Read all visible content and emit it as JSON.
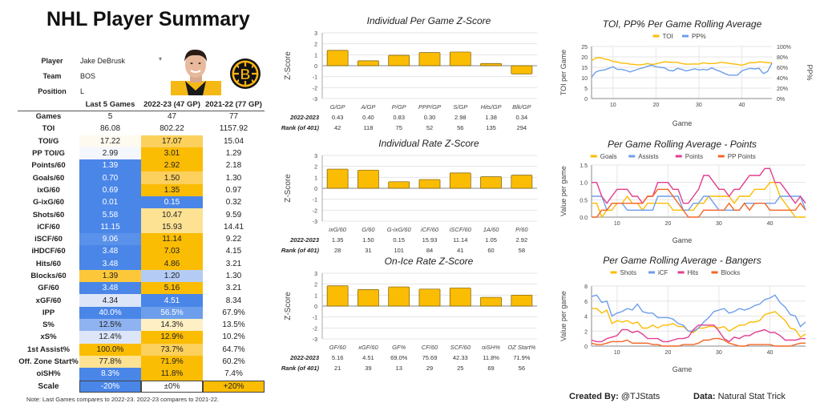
{
  "page": {
    "title": "NHL Player Summary",
    "created_by_label": "Created By:",
    "created_by_value": "@TJStats",
    "data_label": "Data:",
    "data_value": "Natural Stat Trick"
  },
  "player": {
    "player_label": "Player",
    "player_value": "Jake DeBrusk",
    "team_label": "Team",
    "team_value": "BOS",
    "position_label": "Position",
    "position_value": "L",
    "dropdown_icon": "caret-down-icon",
    "headshot": "player-headshot",
    "team_logo": "bruins-logo"
  },
  "colors": {
    "blue_strong": "#4a86e8",
    "blue_mid": "#6d9eeb",
    "blue_light": "#a4c2f4",
    "blue_pale": "#dce6f8",
    "white_ish": "#fdfaf2",
    "gold_strong": "#fbbc04",
    "gold_mid": "#fcc83a",
    "gold_light": "#fde293",
    "gold_pale": "#fef0c4",
    "bar": "#fbbc04",
    "toi": "#fbbc04",
    "pp": "#6d9eeb",
    "points": "#e23d8f",
    "ppp": "#f46524"
  },
  "table": {
    "headers": [
      "",
      "Last 5 Games",
      "2022-23 (47 GP)",
      "2021-22 (77 GP)"
    ],
    "rows": [
      {
        "label": "Games",
        "c1": "5",
        "c2": "47",
        "c3": "77",
        "bg1": "",
        "bg2": ""
      },
      {
        "label": "TOI",
        "c1": "86.08",
        "c2": "802.22",
        "c3": "1157.92",
        "bg1": "",
        "bg2": ""
      },
      {
        "label": "TOI/G",
        "c1": "17.22",
        "c2": "17.07",
        "c3": "15.04",
        "bg1": "#fffaf0",
        "bg2": "#fcd05c"
      },
      {
        "label": "PP TOI/G",
        "c1": "2.99",
        "c2": "3.01",
        "c3": "1.29",
        "bg1": "#f4f7fd",
        "bg2": "#fbbc04"
      },
      {
        "label": "Points/60",
        "c1": "1.39",
        "c2": "2.92",
        "c3": "2.18",
        "bg1": "#4a86e8",
        "bg2": "#fbbc04"
      },
      {
        "label": "Goals/60",
        "c1": "0.70",
        "c2": "1.50",
        "c3": "1.30",
        "bg1": "#4a86e8",
        "bg2": "#fcd05c"
      },
      {
        "label": "ixG/60",
        "c1": "0.69",
        "c2": "1.35",
        "c3": "0.97",
        "bg1": "#4a86e8",
        "bg2": "#fbbc04"
      },
      {
        "label": "G-ixG/60",
        "c1": "0.01",
        "c2": "0.15",
        "c3": "0.32",
        "bg1": "#4a86e8",
        "bg2": "#4a86e8"
      },
      {
        "label": "Shots/60",
        "c1": "5.58",
        "c2": "10.47",
        "c3": "9.59",
        "bg1": "#4a86e8",
        "bg2": "#fde293"
      },
      {
        "label": "iCF/60",
        "c1": "11.15",
        "c2": "15.93",
        "c3": "14.41",
        "bg1": "#4a86e8",
        "bg2": "#fde293"
      },
      {
        "label": "iSCF/60",
        "c1": "9.06",
        "c2": "11.14",
        "c3": "9.22",
        "bg1": "#5a91ea",
        "bg2": "#fbbc04"
      },
      {
        "label": "iHDCF/60",
        "c1": "3.48",
        "c2": "7.03",
        "c3": "4.15",
        "bg1": "#4a86e8",
        "bg2": "#fbbc04"
      },
      {
        "label": "Hits/60",
        "c1": "3.48",
        "c2": "4.86",
        "c3": "3.21",
        "bg1": "#4a86e8",
        "bg2": "#fbbc04"
      },
      {
        "label": "Blocks/60",
        "c1": "1.39",
        "c2": "1.20",
        "c3": "1.30",
        "bg1": "#fcc83a",
        "bg2": "#b4ccf5"
      },
      {
        "label": "GF/60",
        "c1": "3.48",
        "c2": "5.16",
        "c3": "3.21",
        "bg1": "#4a86e8",
        "bg2": "#fbbc04"
      },
      {
        "label": "xGF/60",
        "c1": "4.34",
        "c2": "4.51",
        "c3": "8.34",
        "bg1": "#dce6f8",
        "bg2": "#4a86e8"
      },
      {
        "label": "IPP",
        "c1": "40.0%",
        "c2": "56.5%",
        "c3": "67.9%",
        "bg1": "#4a86e8",
        "bg2": "#6d9eeb"
      },
      {
        "label": "S%",
        "c1": "12.5%",
        "c2": "14.3%",
        "c3": "13.5%",
        "bg1": "#8fb3f0",
        "bg2": "#fef0c4"
      },
      {
        "label": "xS%",
        "c1": "12.4%",
        "c2": "12.9%",
        "c3": "10.2%",
        "bg1": "#dce6f8",
        "bg2": "#fbbc04"
      },
      {
        "label": "1st Assist%",
        "c1": "100.0%",
        "c2": "73.7%",
        "c3": "64.7%",
        "bg1": "#fbbc04",
        "bg2": "#fcd05c"
      },
      {
        "label": "Off. Zone Start%",
        "c1": "77.8%",
        "c2": "71.9%",
        "c3": "60.2%",
        "bg1": "#fde293",
        "bg2": "#fbbc04"
      },
      {
        "label": "oiSH%",
        "c1": "8.3%",
        "c2": "11.8%",
        "c3": "7.4%",
        "bg1": "#4a86e8",
        "bg2": "#fbbc04"
      }
    ]
  },
  "scale": {
    "label": "Scale",
    "low": "-20%",
    "mid": "±0%",
    "high": "+20%"
  },
  "note": "Note: Last Games compares to 2022-23. 2022-23 compares to 2021-22.",
  "chart_data": [
    {
      "id": "zpg",
      "type": "bar",
      "title": "Individual Per Game Z-Score",
      "ylabel": "Z-Score",
      "ylim": [
        -3,
        3
      ],
      "yticks": [
        3,
        2,
        1,
        0,
        -1,
        -2,
        -3
      ],
      "grid": true,
      "categories": [
        "G/GP",
        "A/GP",
        "P/GP",
        "PPP/GP",
        "S/GP",
        "Hits/GP",
        "Blk/GP"
      ],
      "values": [
        1.4,
        0.45,
        0.95,
        1.2,
        1.25,
        0.2,
        -0.75
      ],
      "row1_label": "2022-2023",
      "row1": [
        "0.43",
        "0.40",
        "0.83",
        "0.30",
        "2.98",
        "1.38",
        "0.34"
      ],
      "row2_label": "Rank (of 401)",
      "row2": [
        "42",
        "118",
        "75",
        "52",
        "56",
        "135",
        "294"
      ]
    },
    {
      "id": "zrate",
      "type": "bar",
      "title": "Individual Rate Z-Score",
      "ylabel": "Z-Score",
      "ylim": [
        -3,
        3
      ],
      "yticks": [
        3,
        2,
        1,
        0,
        -1,
        -2,
        -3
      ],
      "grid": true,
      "categories": [
        "ixG/60",
        "G/60",
        "G-ixG/60",
        "iCF/60",
        "iSCF/60",
        "1A/60",
        "P/60"
      ],
      "values": [
        1.75,
        1.65,
        0.6,
        0.8,
        1.4,
        1.05,
        1.2
      ],
      "row1_label": "2022-2023",
      "row1": [
        "1.35",
        "1.50",
        "0.15",
        "15.93",
        "11.14",
        "1.05",
        "2.92"
      ],
      "row2_label": "Rank (of 401)",
      "row2": [
        "28",
        "31",
        "101",
        "84",
        "41",
        "60",
        "58"
      ]
    },
    {
      "id": "zice",
      "type": "bar",
      "title": "On-Ice Rate Z-Score",
      "ylabel": "Z-Score",
      "ylim": [
        -3,
        3
      ],
      "yticks": [
        3,
        2,
        1,
        0,
        -1,
        -2,
        -3
      ],
      "grid": true,
      "categories": [
        "GF/60",
        "xGF/60",
        "GF%",
        "CF/60",
        "SCF/60",
        "oiSH%",
        "OZ Start%"
      ],
      "values": [
        1.85,
        1.5,
        1.75,
        1.55,
        1.65,
        0.8,
        1.0
      ],
      "row1_label": "2022-2023",
      "row1": [
        "5.16",
        "4.51",
        "69.0%",
        "75.69",
        "42.33",
        "11.8%",
        "71.9%"
      ],
      "row2_label": "Rank (of 401)",
      "row2": [
        "21",
        "39",
        "13",
        "29",
        "25",
        "69",
        "56"
      ]
    },
    {
      "id": "toi",
      "type": "line",
      "title": "TOI, PP% Per Game Rolling Average",
      "xlabel": "Game",
      "ylabel": "TOI per Game",
      "ylabel_right": "PP%",
      "xlim": [
        5,
        47
      ],
      "xticks": [
        10,
        20,
        30,
        40
      ],
      "ylim": [
        0,
        25
      ],
      "yticks": [
        0,
        5,
        10,
        15,
        20,
        25
      ],
      "ylim_right": [
        0,
        100
      ],
      "yticks_right": [
        "0%",
        "20%",
        "40%",
        "60%",
        "80%",
        "100%"
      ],
      "legend": "top",
      "grid": true,
      "x": [
        5,
        6,
        7,
        8,
        9,
        10,
        11,
        12,
        13,
        14,
        15,
        16,
        17,
        18,
        19,
        20,
        21,
        22,
        23,
        24,
        25,
        26,
        27,
        28,
        29,
        30,
        31,
        32,
        33,
        34,
        35,
        36,
        37,
        38,
        39,
        40,
        41,
        42,
        43,
        44,
        45,
        46,
        47
      ],
      "series": [
        {
          "name": "TOI",
          "axis": "left",
          "color": "#fbbc04",
          "values": [
            18.2,
            19.5,
            19.6,
            19.0,
            18.6,
            17.8,
            17.5,
            17.0,
            16.9,
            16.5,
            16.4,
            16.1,
            16.3,
            16.8,
            16.4,
            16.6,
            17.2,
            17.6,
            17.5,
            17.4,
            17.4,
            16.8,
            16.5,
            16.5,
            16.6,
            16.5,
            17.2,
            16.8,
            16.8,
            16.9,
            17.4,
            17.2,
            16.9,
            16.6,
            16.4,
            16.0,
            16.6,
            17.3,
            17.2,
            17.6,
            17.5,
            17.2,
            17.2
          ]
        },
        {
          "name": "PP%",
          "axis": "right",
          "color": "#6d9eeb",
          "values": [
            41,
            51,
            54,
            55,
            58,
            61,
            56,
            56,
            54,
            51,
            54,
            57,
            59,
            62,
            64,
            61,
            60,
            59,
            54,
            53,
            58,
            56,
            53,
            55,
            57,
            55,
            56,
            55,
            59,
            55,
            52,
            48,
            45,
            45,
            45,
            53,
            56,
            58,
            57,
            58,
            48,
            52,
            68
          ]
        }
      ]
    },
    {
      "id": "points",
      "type": "line",
      "title": "Per Game Rolling Average - Points",
      "xlabel": "Game",
      "ylabel": "Value per game",
      "xlim": [
        5,
        47
      ],
      "xticks": [
        10,
        20,
        30,
        40
      ],
      "ylim": [
        0,
        1.5
      ],
      "yticks": [
        0.0,
        0.5,
        1.0,
        1.5
      ],
      "ytick_labels": [
        "0.0",
        "0.5",
        "1.0",
        "1.5"
      ],
      "legend": "top",
      "grid": true,
      "x": [
        5,
        6,
        7,
        8,
        9,
        10,
        11,
        12,
        13,
        14,
        15,
        16,
        17,
        18,
        19,
        20,
        21,
        22,
        23,
        24,
        25,
        26,
        27,
        28,
        29,
        30,
        31,
        32,
        33,
        34,
        35,
        36,
        37,
        38,
        39,
        40,
        41,
        42,
        43,
        44,
        45,
        46,
        47
      ],
      "series": [
        {
          "name": "Goals",
          "color": "#fbbc04",
          "values": [
            0.4,
            0.4,
            0.0,
            0.2,
            0.2,
            0.4,
            0.4,
            0.6,
            0.4,
            0.4,
            0.2,
            0.4,
            0.4,
            0.4,
            0.4,
            0.4,
            0.2,
            0.2,
            0.2,
            0.2,
            0.2,
            0.4,
            0.4,
            0.6,
            0.6,
            0.6,
            0.6,
            0.6,
            0.4,
            0.6,
            0.6,
            0.6,
            0.8,
            0.8,
            0.8,
            1.0,
            1.0,
            0.6,
            0.4,
            0.2,
            0.0,
            0.0,
            0.0
          ]
        },
        {
          "name": "Assists",
          "color": "#6d9eeb",
          "values": [
            0.6,
            0.6,
            0.6,
            0.2,
            0.4,
            0.4,
            0.4,
            0.2,
            0.2,
            0.2,
            0.2,
            0.2,
            0.2,
            0.6,
            0.6,
            0.6,
            0.6,
            0.6,
            0.2,
            0.2,
            0.4,
            0.4,
            0.6,
            0.6,
            0.4,
            0.2,
            0.2,
            0.2,
            0.2,
            0.2,
            0.4,
            0.4,
            0.4,
            0.4,
            0.4,
            0.4,
            0.4,
            0.6,
            0.6,
            0.6,
            0.6,
            0.6,
            0.2
          ]
        },
        {
          "name": "Points",
          "color": "#e23d8f",
          "values": [
            1.0,
            1.0,
            0.6,
            0.4,
            0.6,
            0.8,
            0.8,
            0.8,
            0.6,
            0.6,
            0.4,
            0.6,
            0.6,
            1.0,
            1.0,
            1.0,
            0.8,
            0.8,
            0.4,
            0.4,
            0.6,
            0.8,
            1.2,
            1.2,
            1.0,
            0.8,
            0.8,
            0.6,
            0.8,
            0.8,
            1.0,
            1.2,
            1.2,
            1.2,
            1.4,
            1.4,
            1.0,
            1.0,
            0.8,
            0.6,
            0.4,
            0.6,
            0.4
          ]
        },
        {
          "name": "PP Points",
          "color": "#f46524",
          "values": [
            0.0,
            0.0,
            0.2,
            0.2,
            0.4,
            0.4,
            0.4,
            0.4,
            0.4,
            0.4,
            0.4,
            0.6,
            0.6,
            0.8,
            0.8,
            0.8,
            0.6,
            0.4,
            0.2,
            0.0,
            0.0,
            0.0,
            0.2,
            0.2,
            0.2,
            0.2,
            0.2,
            0.4,
            0.2,
            0.2,
            0.4,
            0.2,
            0.4,
            0.4,
            0.4,
            0.2,
            0.2,
            0.2,
            0.2,
            0.2,
            0.2,
            0.4,
            0.2
          ]
        }
      ]
    },
    {
      "id": "bangers",
      "type": "line",
      "title": "Per Game Rolling Average - Bangers",
      "xlabel": "Game",
      "ylabel": "Value per game",
      "xlim": [
        5,
        47
      ],
      "xticks": [
        10,
        20,
        30,
        40
      ],
      "ylim": [
        0,
        8
      ],
      "yticks": [
        0,
        2,
        4,
        6,
        8
      ],
      "ytick_labels": [
        "0",
        "2",
        "4",
        "6",
        "8"
      ],
      "legend": "top",
      "grid": true,
      "x": [
        5,
        6,
        7,
        8,
        9,
        10,
        11,
        12,
        13,
        14,
        15,
        16,
        17,
        18,
        19,
        20,
        21,
        22,
        23,
        24,
        25,
        26,
        27,
        28,
        29,
        30,
        31,
        32,
        33,
        34,
        35,
        36,
        37,
        38,
        39,
        40,
        41,
        42,
        43,
        44,
        45,
        46,
        47
      ],
      "series": [
        {
          "name": "Shots",
          "color": "#fbbc04",
          "values": [
            5.0,
            5.0,
            4.4,
            4.8,
            3.0,
            3.4,
            3.2,
            3.4,
            3.0,
            3.2,
            2.4,
            2.4,
            2.8,
            2.4,
            2.8,
            2.8,
            3.0,
            2.6,
            2.6,
            2.0,
            1.8,
            2.4,
            2.4,
            2.6,
            2.6,
            2.4,
            2.6,
            2.0,
            2.4,
            2.8,
            2.8,
            3.2,
            3.2,
            3.4,
            4.2,
            4.4,
            4.6,
            4.0,
            3.4,
            2.4,
            2.2,
            1.2,
            1.6
          ]
        },
        {
          "name": "iCF",
          "color": "#6d9eeb",
          "values": [
            6.6,
            6.8,
            5.8,
            6.0,
            4.0,
            4.4,
            4.6,
            5.0,
            4.8,
            5.6,
            4.6,
            4.4,
            4.4,
            3.8,
            3.8,
            3.8,
            3.6,
            3.0,
            2.8,
            2.0,
            2.0,
            2.4,
            3.2,
            3.8,
            4.6,
            4.8,
            5.0,
            4.4,
            4.6,
            5.0,
            4.8,
            5.0,
            5.4,
            5.6,
            6.2,
            6.4,
            6.8,
            5.8,
            5.2,
            4.2,
            4.0,
            2.6,
            3.2
          ]
        },
        {
          "name": "Hits",
          "color": "#e23d8f",
          "values": [
            0.8,
            0.6,
            0.6,
            1.0,
            1.2,
            1.4,
            2.2,
            2.2,
            1.8,
            2.0,
            1.6,
            1.0,
            1.0,
            1.0,
            0.6,
            0.6,
            0.8,
            1.0,
            1.0,
            1.2,
            2.2,
            2.8,
            2.8,
            2.8,
            2.8,
            2.0,
            1.0,
            0.6,
            1.2,
            1.0,
            1.4,
            1.4,
            1.8,
            2.0,
            2.2,
            1.8,
            1.8,
            1.4,
            0.8,
            0.8,
            0.8,
            1.0,
            1.0
          ]
        },
        {
          "name": "Blocks",
          "color": "#f46524",
          "values": [
            0.4,
            0.2,
            0.2,
            0.4,
            0.6,
            0.6,
            0.6,
            0.8,
            0.4,
            0.4,
            0.4,
            0.4,
            0.2,
            0.2,
            0.0,
            0.0,
            0.0,
            0.0,
            0.2,
            0.2,
            0.2,
            0.4,
            0.8,
            0.8,
            1.0,
            1.0,
            0.8,
            0.4,
            0.2,
            0.0,
            0.0,
            0.2,
            0.2,
            0.2,
            0.2,
            0.2,
            0.0,
            0.0,
            0.0,
            0.0,
            0.2,
            0.4,
            0.4
          ]
        }
      ]
    }
  ]
}
